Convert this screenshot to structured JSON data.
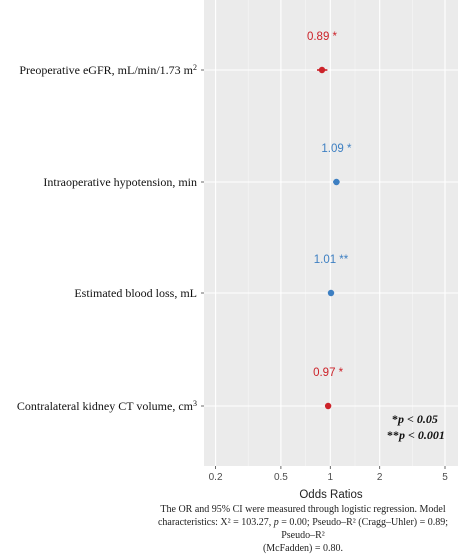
{
  "chart_data": {
    "type": "scatter",
    "xlabel": "Odds Ratios",
    "xscale": "log",
    "xlim": [
      0.17,
      6.0
    ],
    "xticks": [
      0.2,
      0.5,
      1,
      2,
      5
    ],
    "xtick_labels": [
      "0.2",
      "0.5",
      "1",
      "2",
      "5"
    ],
    "grid": true,
    "rows": [
      {
        "label": "Preoperative eGFR, mL/min/1.73 m",
        "label_sup": "2",
        "or": 0.89,
        "ci": [
          0.83,
          0.96
        ],
        "annotation": "0.89 *",
        "color": "#cc2229"
      },
      {
        "label": "Intraoperative hypotension, min",
        "label_sup": "",
        "or": 1.09,
        "ci": [
          1.04,
          1.14
        ],
        "annotation": "1.09 *",
        "color": "#3d7fc2"
      },
      {
        "label": "Estimated blood loss, mL",
        "label_sup": "",
        "or": 1.01,
        "ci": [
          1.005,
          1.015
        ],
        "annotation": "1.01 **",
        "color": "#3d7fc2"
      },
      {
        "label": "Contralateral kidney CT volume, cm",
        "label_sup": "3",
        "or": 0.97,
        "ci": [
          0.955,
          0.985
        ],
        "annotation": "0.97 *",
        "color": "#cc2229"
      }
    ],
    "legend": {
      "placement": "bottom-right",
      "items": [
        {
          "stars": "*",
          "text": "p < 0.05"
        },
        {
          "stars": "**",
          "text": "p < 0.001"
        }
      ]
    }
  },
  "caption": {
    "line1": "The OR and 95% CI were measured through logistic regression. Model",
    "line2a": "characteristics: X² = 103.27, ",
    "line2b": "p",
    "line2c": " = 0.00; Pseudo–R² (Cragg–Uhler) = 0.89; Pseudo–R²",
    "line3": "(McFadden) = 0.80."
  }
}
